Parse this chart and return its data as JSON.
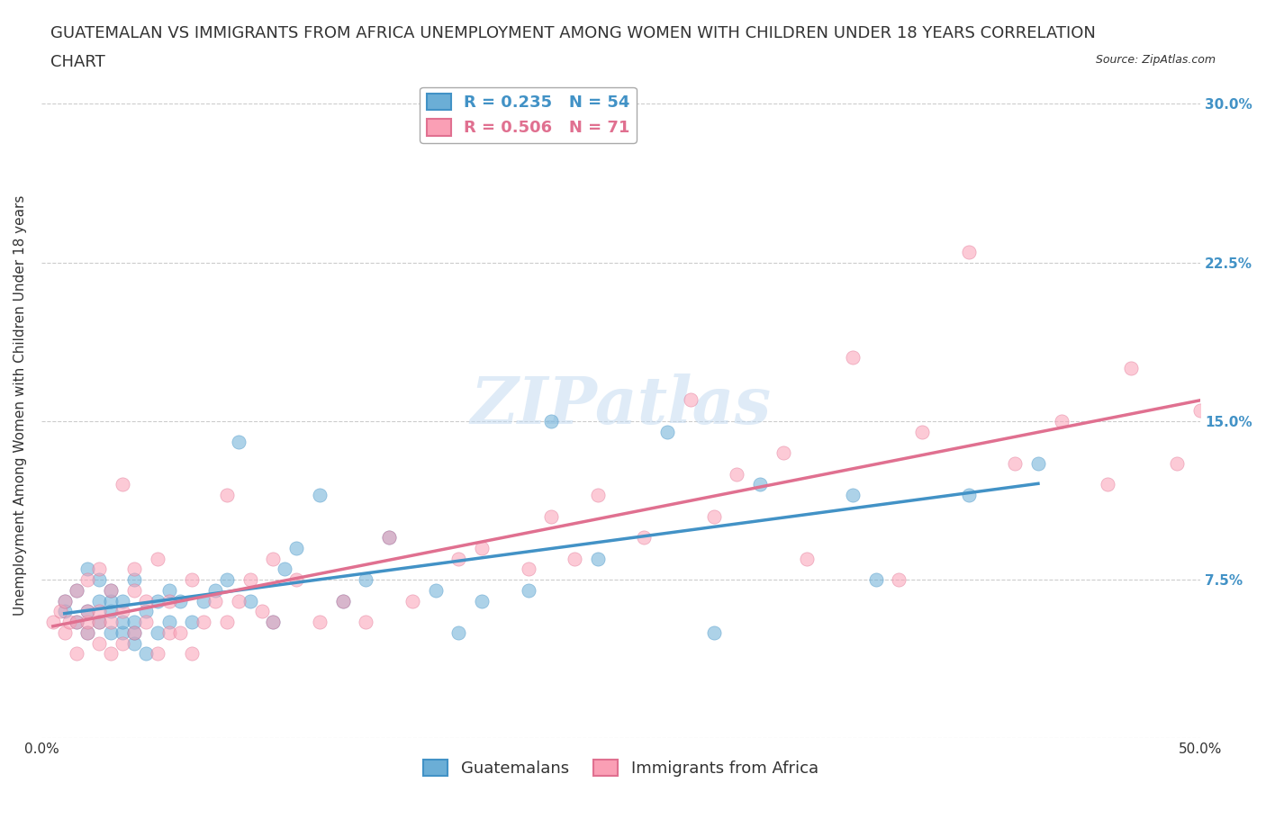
{
  "title": "GUATEMALAN VS IMMIGRANTS FROM AFRICA UNEMPLOYMENT AMONG WOMEN WITH CHILDREN UNDER 18 YEARS CORRELATION\nCHART",
  "source": "Source: ZipAtlas.com",
  "xlabel": "",
  "ylabel": "Unemployment Among Women with Children Under 18 years",
  "xlim": [
    0.0,
    0.5
  ],
  "ylim": [
    0.0,
    0.315
  ],
  "xticks": [
    0.0,
    0.05,
    0.1,
    0.15,
    0.2,
    0.25,
    0.3,
    0.35,
    0.4,
    0.45,
    0.5
  ],
  "xticklabels": [
    "0.0%",
    "",
    "",
    "",
    "",
    "",
    "",
    "",
    "",
    "",
    "50.0%"
  ],
  "yticks": [
    0.0,
    0.075,
    0.15,
    0.225,
    0.3
  ],
  "yticklabels": [
    "",
    "7.5%",
    "15.0%",
    "22.5%",
    "30.0%"
  ],
  "blue_color": "#6baed6",
  "blue_line_color": "#4292c6",
  "pink_color": "#fa9fb5",
  "pink_line_color": "#e377c2",
  "blue_R": 0.235,
  "blue_N": 54,
  "pink_R": 0.506,
  "pink_N": 71,
  "background_color": "#ffffff",
  "grid_color": "#cccccc",
  "watermark": "ZIPatlas",
  "blue_scatter_x": [
    0.01,
    0.01,
    0.015,
    0.015,
    0.02,
    0.02,
    0.02,
    0.025,
    0.025,
    0.025,
    0.03,
    0.03,
    0.03,
    0.03,
    0.035,
    0.035,
    0.035,
    0.04,
    0.04,
    0.04,
    0.04,
    0.045,
    0.045,
    0.05,
    0.05,
    0.055,
    0.055,
    0.06,
    0.065,
    0.07,
    0.075,
    0.08,
    0.085,
    0.09,
    0.1,
    0.105,
    0.11,
    0.12,
    0.13,
    0.14,
    0.15,
    0.17,
    0.18,
    0.19,
    0.21,
    0.22,
    0.24,
    0.27,
    0.29,
    0.31,
    0.35,
    0.36,
    0.4,
    0.43
  ],
  "blue_scatter_y": [
    0.06,
    0.065,
    0.055,
    0.07,
    0.05,
    0.06,
    0.08,
    0.055,
    0.065,
    0.075,
    0.05,
    0.06,
    0.065,
    0.07,
    0.05,
    0.055,
    0.065,
    0.045,
    0.05,
    0.055,
    0.075,
    0.04,
    0.06,
    0.05,
    0.065,
    0.055,
    0.07,
    0.065,
    0.055,
    0.065,
    0.07,
    0.075,
    0.14,
    0.065,
    0.055,
    0.08,
    0.09,
    0.115,
    0.065,
    0.075,
    0.095,
    0.07,
    0.05,
    0.065,
    0.07,
    0.15,
    0.085,
    0.145,
    0.05,
    0.12,
    0.115,
    0.075,
    0.115,
    0.13
  ],
  "pink_scatter_x": [
    0.005,
    0.008,
    0.01,
    0.01,
    0.012,
    0.015,
    0.015,
    0.015,
    0.02,
    0.02,
    0.02,
    0.02,
    0.025,
    0.025,
    0.025,
    0.025,
    0.03,
    0.03,
    0.03,
    0.035,
    0.035,
    0.035,
    0.04,
    0.04,
    0.04,
    0.045,
    0.045,
    0.05,
    0.05,
    0.055,
    0.055,
    0.06,
    0.065,
    0.065,
    0.07,
    0.075,
    0.08,
    0.08,
    0.085,
    0.09,
    0.095,
    0.1,
    0.1,
    0.11,
    0.12,
    0.13,
    0.14,
    0.15,
    0.16,
    0.18,
    0.19,
    0.21,
    0.22,
    0.23,
    0.24,
    0.26,
    0.28,
    0.29,
    0.3,
    0.32,
    0.33,
    0.35,
    0.37,
    0.38,
    0.4,
    0.42,
    0.44,
    0.46,
    0.47,
    0.49,
    0.5
  ],
  "pink_scatter_y": [
    0.055,
    0.06,
    0.05,
    0.065,
    0.055,
    0.04,
    0.055,
    0.07,
    0.05,
    0.055,
    0.06,
    0.075,
    0.045,
    0.055,
    0.06,
    0.08,
    0.04,
    0.055,
    0.07,
    0.045,
    0.06,
    0.12,
    0.05,
    0.07,
    0.08,
    0.055,
    0.065,
    0.04,
    0.085,
    0.05,
    0.065,
    0.05,
    0.04,
    0.075,
    0.055,
    0.065,
    0.055,
    0.115,
    0.065,
    0.075,
    0.06,
    0.055,
    0.085,
    0.075,
    0.055,
    0.065,
    0.055,
    0.095,
    0.065,
    0.085,
    0.09,
    0.08,
    0.105,
    0.085,
    0.115,
    0.095,
    0.16,
    0.105,
    0.125,
    0.135,
    0.085,
    0.18,
    0.075,
    0.145,
    0.23,
    0.13,
    0.15,
    0.12,
    0.175,
    0.13,
    0.155
  ],
  "title_fontsize": 13,
  "axis_label_fontsize": 11,
  "tick_fontsize": 11,
  "legend_fontsize": 13,
  "right_ytick_color": "#4292c6"
}
